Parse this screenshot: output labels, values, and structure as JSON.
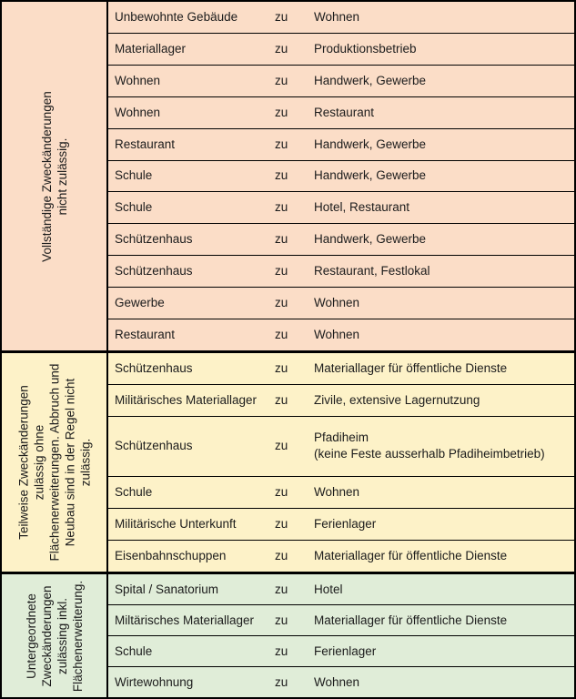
{
  "table": {
    "zu_label": "zu",
    "colors": {
      "border": "#000000",
      "text": "#1c1c1c",
      "section_1_bg": "#fbddc7",
      "section_2_bg": "#fdf2c8",
      "section_3_bg": "#e0edd8"
    },
    "sections": [
      {
        "name": "vollstaendige-zweckaenderungen",
        "label": "Vollständige Zweckänderungen\nnicht zulässig.",
        "bg": "#fbddc7",
        "rows": [
          {
            "from": "Unbewohnte Gebäude",
            "to": "Wohnen"
          },
          {
            "from": "Materiallager",
            "to": "Produktionsbetrieb"
          },
          {
            "from": "Wohnen",
            "to": "Handwerk, Gewerbe"
          },
          {
            "from": "Wohnen",
            "to": "Restaurant"
          },
          {
            "from": "Restaurant",
            "to": "Handwerk, Gewerbe"
          },
          {
            "from": "Schule",
            "to": "Handwerk, Gewerbe"
          },
          {
            "from": "Schule",
            "to": "Hotel, Restaurant"
          },
          {
            "from": "Schützenhaus",
            "to": "Handwerk, Gewerbe"
          },
          {
            "from": "Schützenhaus",
            "to": "Restaurant, Festlokal"
          },
          {
            "from": "Gewerbe",
            "to": "Wohnen"
          },
          {
            "from": "Restaurant",
            "to": "Wohnen"
          }
        ]
      },
      {
        "name": "teilweise-zweckaenderungen",
        "label": "Teilweise Zweckänderungen\nzulässig ohne\nFlächenerweiterungen. Abbruch und\nNeubau sind in der Regel nicht\nzulässig.",
        "bg": "#fdf2c8",
        "rows": [
          {
            "from": "Schützenhaus",
            "to": "Materiallager für öffentliche Dienste"
          },
          {
            "from": "Militärisches Materiallager",
            "to": "Zivile, extensive Lagernutzung"
          },
          {
            "from": "Schützenhaus",
            "to": "Pfadiheim\n(keine Feste ausserhalb Pfadiheimbetrieb)",
            "tall": true
          },
          {
            "from": "Schule",
            "to": "Wohnen"
          },
          {
            "from": "Militärische Unterkunft",
            "to": "Ferienlager"
          },
          {
            "from": "Eisenbahnschuppen",
            "to": "Materiallager für öffentliche Dienste"
          }
        ]
      },
      {
        "name": "untergeordnete-zweckaenderungen",
        "label": "Untergeordnete\nZweckänderungen\nzulässing inkl.\nFlächenerweiterung.",
        "bg": "#e0edd8",
        "rows": [
          {
            "from": "Spital / Sanatorium",
            "to": "Hotel"
          },
          {
            "from": "Miltärisches Materiallager",
            "to": "Materiallager für öffentliche Dienste"
          },
          {
            "from": "Schule",
            "to": "Ferienlager"
          },
          {
            "from": "Wirtewohnung",
            "to": "Wohnen"
          }
        ]
      }
    ]
  }
}
